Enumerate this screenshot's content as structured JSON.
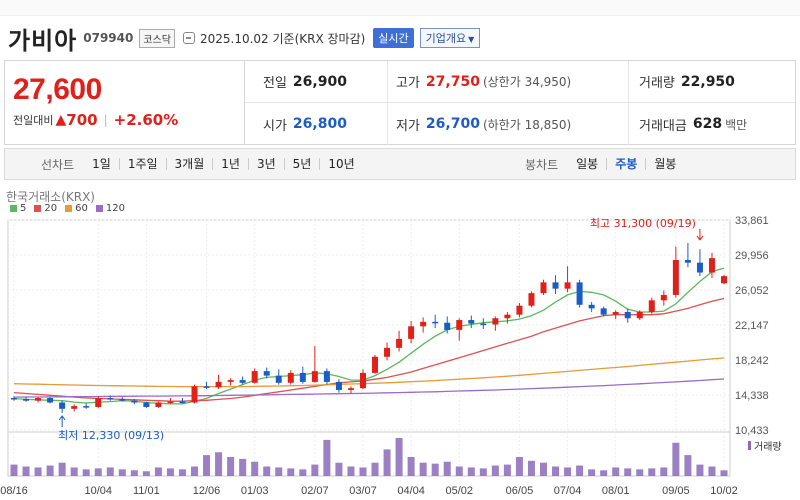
{
  "header": {
    "name": "가비아",
    "code": "079940",
    "market": "코스닥",
    "date_info": "2025.10.02  기준(KRX 장마감)",
    "realtime_label": "실시간",
    "overview_label": "기업개요"
  },
  "quote": {
    "price": "27,600",
    "change_label": "전일대비",
    "change": "700",
    "change_pct": "+2.60%",
    "prev_close_label": "전일",
    "prev_close": "26,900",
    "high_label": "고가",
    "high": "27,750",
    "upper_limit": "(상한가 34,950)",
    "volume_label": "거래량",
    "volume": "22,950",
    "open_label": "시가",
    "open": "26,800",
    "low_label": "저가",
    "low": "26,700",
    "lower_limit": "(하한가 18,850)",
    "amount_label": "거래대금",
    "amount": "628",
    "amount_unit": "백만"
  },
  "tabs": {
    "line_label": "선차트",
    "line_items": [
      "1일",
      "1주일",
      "3개월",
      "1년",
      "3년",
      "5년",
      "10년"
    ],
    "candle_label": "봉차트",
    "candle_items": [
      "일봉",
      "주봉",
      "월봉"
    ],
    "candle_active": "주봉"
  },
  "exchange_label": "한국거래소(KRX)",
  "legend": [
    {
      "label": "5",
      "color": "#5cb85c"
    },
    {
      "label": "20",
      "color": "#e05050"
    },
    {
      "label": "60",
      "color": "#e69a3a"
    },
    {
      "label": "120",
      "color": "#9b6bc8"
    }
  ],
  "volume_legend": "거래량",
  "chart_data": {
    "type": "candlestick",
    "y_ticks": [
      "33,861",
      "29,956",
      "26,052",
      "22,147",
      "18,242",
      "14,338",
      "10,433"
    ],
    "ylim": [
      10433,
      33861
    ],
    "x_labels": [
      "08/16",
      "10/04",
      "11/01",
      "12/06",
      "01/03",
      "02/07",
      "03/07",
      "04/04",
      "05/02",
      "06/05",
      "07/04",
      "08/01",
      "09/05",
      "10/02"
    ],
    "x_label_index": [
      0,
      7,
      11,
      16,
      20,
      25,
      29,
      33,
      37,
      42,
      46,
      50,
      55,
      59
    ],
    "annotations": {
      "high": "최고 31,300 (09/19)",
      "high_value": 31300,
      "high_index": 57,
      "low": "최저 12,330 (09/13)",
      "low_value": 12330,
      "low_index": 4
    },
    "candles": [
      [
        14000,
        14200,
        13700,
        13900
      ],
      [
        13900,
        14100,
        13600,
        13700
      ],
      [
        13700,
        14100,
        13500,
        14000
      ],
      [
        14000,
        14100,
        13400,
        13500
      ],
      [
        13500,
        13700,
        12330,
        12800
      ],
      [
        12800,
        13300,
        12500,
        13100
      ],
      [
        13100,
        13400,
        12800,
        13000
      ],
      [
        13000,
        14200,
        12900,
        14000
      ],
      [
        14000,
        14300,
        13700,
        13900
      ],
      [
        13900,
        14100,
        13600,
        13700
      ],
      [
        13700,
        13900,
        13300,
        13500
      ],
      [
        13500,
        13600,
        12900,
        13000
      ],
      [
        13000,
        13600,
        12900,
        13500
      ],
      [
        13500,
        14000,
        13300,
        13600
      ],
      [
        13600,
        14000,
        13400,
        13500
      ],
      [
        13500,
        15500,
        13400,
        15300
      ],
      [
        15300,
        15800,
        15000,
        15200
      ],
      [
        15200,
        16600,
        15000,
        15800
      ],
      [
        15800,
        16200,
        15400,
        16000
      ],
      [
        16000,
        16400,
        15500,
        15700
      ],
      [
        15700,
        17300,
        15600,
        17000
      ],
      [
        17000,
        17400,
        16200,
        16500
      ],
      [
        16500,
        17200,
        15500,
        15700
      ],
      [
        15700,
        17100,
        15500,
        16800
      ],
      [
        16800,
        17500,
        15600,
        15800
      ],
      [
        15800,
        19800,
        15700,
        17000
      ],
      [
        17000,
        17300,
        15500,
        15800
      ],
      [
        15800,
        16100,
        14600,
        14900
      ],
      [
        14900,
        15300,
        14500,
        15100
      ],
      [
        15100,
        17200,
        15000,
        16800
      ],
      [
        16800,
        18800,
        16700,
        18600
      ],
      [
        18600,
        20200,
        18200,
        19600
      ],
      [
        19600,
        21500,
        19200,
        20600
      ],
      [
        20600,
        22600,
        20100,
        22000
      ],
      [
        22000,
        23000,
        21300,
        22500
      ],
      [
        22500,
        23300,
        21800,
        22400
      ],
      [
        22400,
        23100,
        21200,
        21600
      ],
      [
        21600,
        22900,
        20400,
        22700
      ],
      [
        22700,
        23200,
        21800,
        22300
      ],
      [
        22300,
        22900,
        21700,
        22200
      ],
      [
        22200,
        23100,
        21500,
        22900
      ],
      [
        22900,
        23600,
        22300,
        23300
      ],
      [
        23300,
        24600,
        23000,
        24300
      ],
      [
        24300,
        25900,
        24100,
        25700
      ],
      [
        25700,
        27200,
        25500,
        26900
      ],
      [
        26900,
        27700,
        25600,
        26200
      ],
      [
        26200,
        28700,
        25800,
        26900
      ],
      [
        26900,
        27200,
        24100,
        24400
      ],
      [
        24400,
        24700,
        23600,
        24000
      ],
      [
        24000,
        24200,
        23100,
        23300
      ],
      [
        23300,
        23800,
        22800,
        23600
      ],
      [
        23600,
        24000,
        22400,
        22900
      ],
      [
        22900,
        23800,
        22700,
        23600
      ],
      [
        23600,
        25200,
        23400,
        24900
      ],
      [
        24900,
        26000,
        24300,
        25500
      ],
      [
        25500,
        30900,
        25200,
        29400
      ],
      [
        29400,
        31300,
        28600,
        29100
      ],
      [
        29100,
        30600,
        27600,
        28000
      ],
      [
        28000,
        30200,
        27400,
        29600
      ],
      [
        26800,
        27750,
        26700,
        27600
      ]
    ],
    "ma5": [
      13950,
      13850,
      13800,
      13750,
      13700,
      13550,
      13450,
      13550,
      13600,
      13700,
      13650,
      13500,
      13400,
      13350,
      13350,
      13650,
      13950,
      14500,
      15000,
      15500,
      16000,
      16300,
      16400,
      16500,
      16600,
      16800,
      16700,
      16400,
      16000,
      16000,
      16500,
      17200,
      18000,
      19000,
      20000,
      20900,
      21600,
      22000,
      22200,
      22400,
      22500,
      22600,
      22800,
      23200,
      23800,
      24700,
      25500,
      25900,
      25800,
      25500,
      24800,
      23900,
      23600,
      23600,
      23700,
      24500,
      25800,
      27000,
      28100,
      28500
    ],
    "ma20": [
      14600,
      14500,
      14400,
      14300,
      14200,
      14100,
      14000,
      13950,
      13900,
      13850,
      13800,
      13750,
      13700,
      13650,
      13650,
      13700,
      13750,
      13850,
      13950,
      14100,
      14300,
      14500,
      14700,
      14900,
      15100,
      15300,
      15500,
      15700,
      15800,
      15900,
      16100,
      16300,
      16600,
      16900,
      17300,
      17700,
      18100,
      18500,
      18900,
      19300,
      19700,
      20100,
      20500,
      20900,
      21400,
      21800,
      22200,
      22600,
      22900,
      23200,
      23300,
      23300,
      23300,
      23300,
      23400,
      23700,
      24000,
      24400,
      24800,
      25100
    ],
    "ma60": [
      15600,
      15570,
      15540,
      15510,
      15480,
      15450,
      15420,
      15400,
      15380,
      15360,
      15340,
      15320,
      15300,
      15290,
      15280,
      15270,
      15270,
      15270,
      15270,
      15280,
      15300,
      15320,
      15340,
      15370,
      15400,
      15440,
      15480,
      15520,
      15560,
      15600,
      15650,
      15700,
      15760,
      15820,
      15880,
      15950,
      16020,
      16100,
      16180,
      16260,
      16350,
      16440,
      16540,
      16640,
      16750,
      16860,
      16970,
      17080,
      17190,
      17300,
      17410,
      17520,
      17640,
      17760,
      17880,
      18000,
      18120,
      18240,
      18360,
      18470
    ],
    "ma120": [
      14100,
      14110,
      14120,
      14130,
      14140,
      14150,
      14160,
      14170,
      14180,
      14190,
      14200,
      14210,
      14220,
      14230,
      14240,
      14250,
      14260,
      14280,
      14300,
      14320,
      14340,
      14360,
      14380,
      14400,
      14420,
      14440,
      14460,
      14480,
      14500,
      14520,
      14550,
      14580,
      14610,
      14640,
      14670,
      14700,
      14740,
      14780,
      14820,
      14860,
      14900,
      14950,
      15000,
      15050,
      15100,
      15150,
      15210,
      15270,
      15330,
      15390,
      15450,
      15520,
      15590,
      15660,
      15730,
      15800,
      15880,
      15960,
      16040,
      16120
    ],
    "volume": [
      12,
      10,
      9,
      11,
      14,
      9,
      7,
      8,
      9,
      7,
      6,
      5,
      9,
      8,
      7,
      10,
      22,
      25,
      20,
      18,
      15,
      10,
      9,
      8,
      7,
      12,
      38,
      14,
      10,
      9,
      14,
      28,
      40,
      20,
      14,
      13,
      15,
      10,
      9,
      8,
      11,
      12,
      20,
      16,
      14,
      10,
      9,
      11,
      7,
      6,
      9,
      8,
      7,
      8,
      9,
      35,
      22,
      12,
      10,
      6
    ]
  }
}
